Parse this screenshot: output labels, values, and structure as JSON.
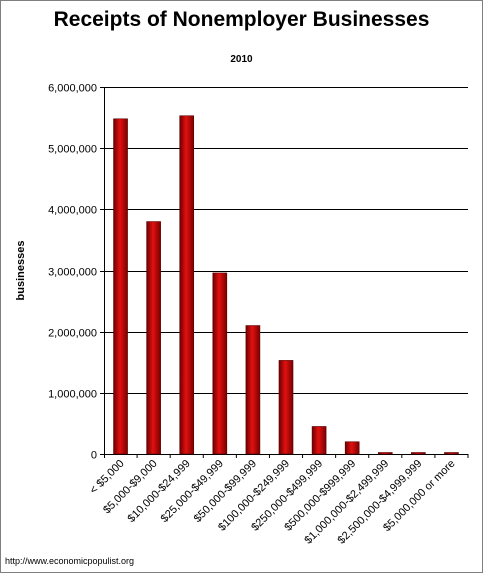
{
  "chart_data": {
    "type": "bar",
    "title": "Receipts of Nonemployer Businesses",
    "subtitle": "2010",
    "xlabel": "",
    "ylabel": "businesses",
    "ylim": [
      0,
      6000000
    ],
    "yticks": [
      0,
      1000000,
      2000000,
      3000000,
      4000000,
      5000000,
      6000000
    ],
    "ytick_labels": [
      "0",
      "1,000,000",
      "2,000,000",
      "3,000,000",
      "4,000,000",
      "5,000,000",
      "6,000,000"
    ],
    "categories": [
      "< $5,000",
      "$5,000-$9,000",
      "$10,000-$24,999",
      "$25,000-$49,999",
      "$50,000-$99,999",
      "$100,000-$249,999",
      "$250,000-$499,999",
      "$500,000-$999,999",
      "$1,000,000-$2,499,999",
      "$2,500,000-$4,999,999",
      "$5,000,000 or more"
    ],
    "values": [
      5480000,
      3800000,
      5530000,
      2960000,
      2100000,
      1530000,
      450000,
      200000,
      22000,
      5000,
      3000
    ],
    "grid": true,
    "legend": "none",
    "bar_color": "#c00000"
  },
  "footer": "http://www.economicpopulist.org"
}
